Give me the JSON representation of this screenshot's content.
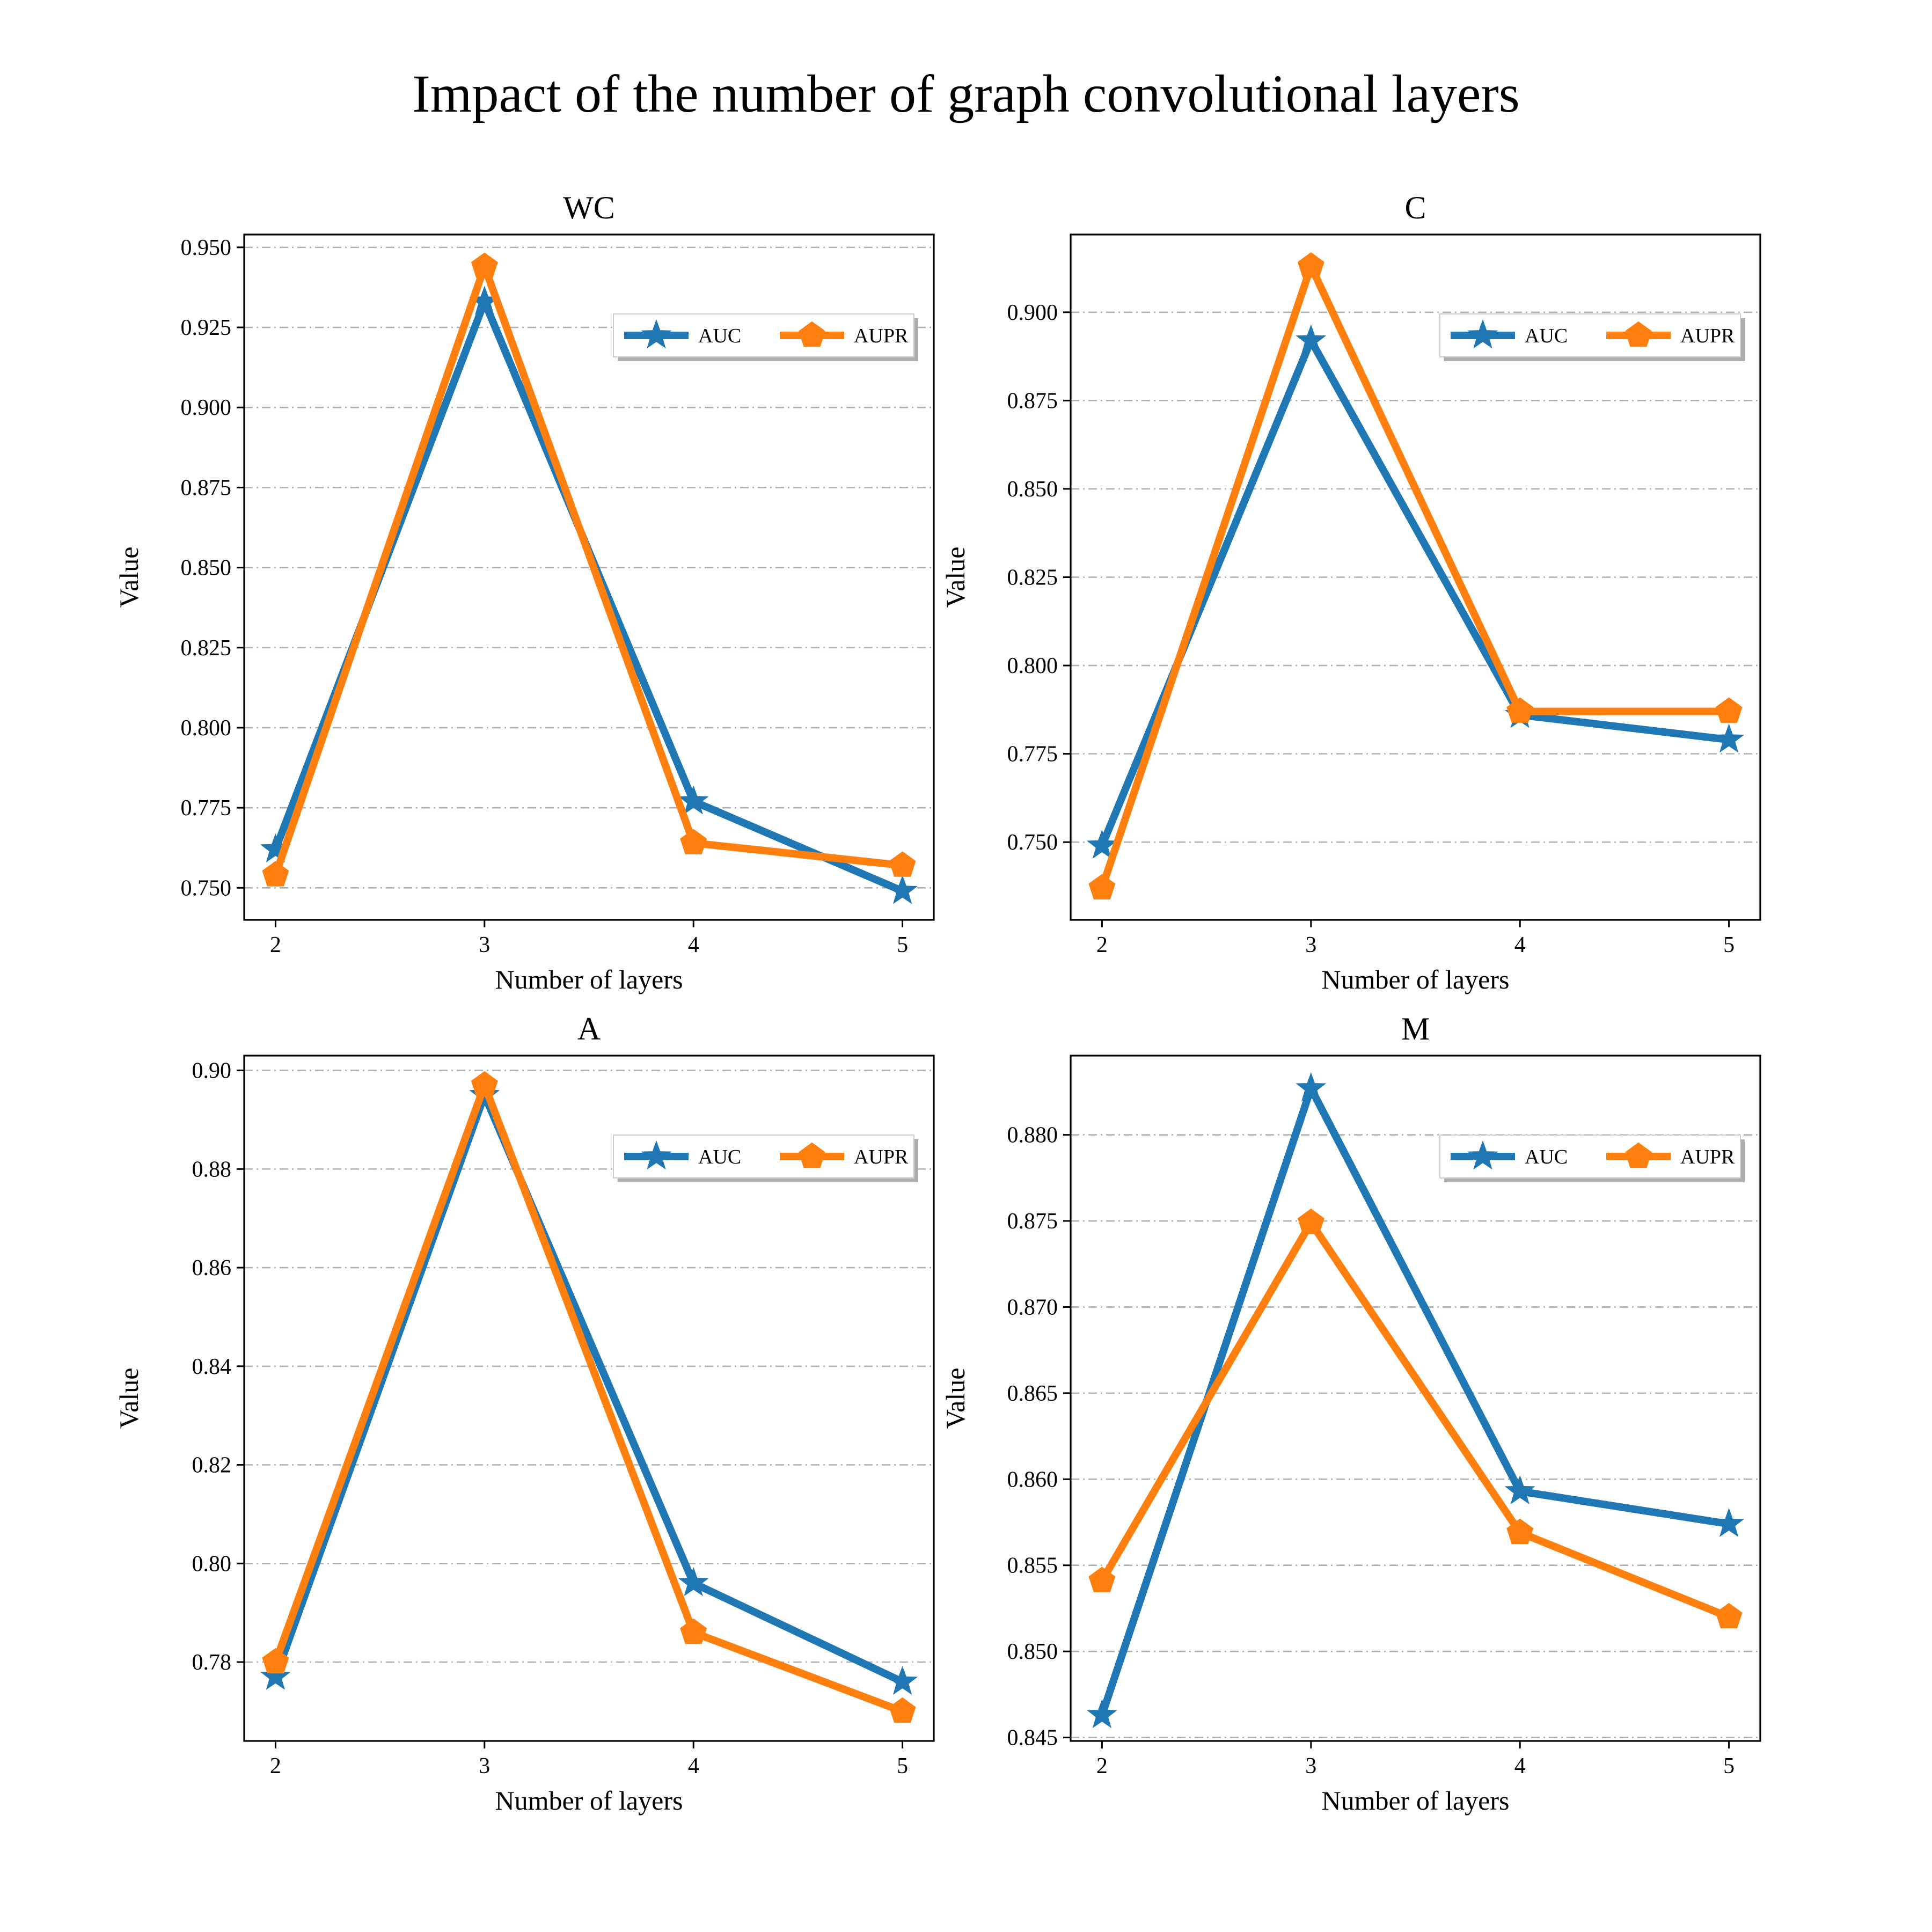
{
  "figure": {
    "title": "Impact of the number of graph convolutional layers"
  },
  "colors": {
    "auc": "#1f77b4",
    "aupr": "#ff7f0e",
    "grid": "#b0b0b0"
  },
  "chart_data": [
    {
      "type": "line",
      "title": "WC",
      "xlabel": "Number of layers",
      "ylabel": "Value",
      "x": [
        2,
        3,
        4,
        5
      ],
      "xticks": [
        "2",
        "3",
        "4",
        "5"
      ],
      "ylim": [
        0.74,
        0.954
      ],
      "yticks": [
        "0.750",
        "0.775",
        "0.800",
        "0.825",
        "0.850",
        "0.875",
        "0.900",
        "0.925",
        "0.950"
      ],
      "ytick_values": [
        0.75,
        0.775,
        0.8,
        0.825,
        0.85,
        0.875,
        0.9,
        0.925,
        0.95
      ],
      "grid": true,
      "legend": "upper right",
      "series": [
        {
          "name": "AUC",
          "marker": "star",
          "values": [
            0.762,
            0.933,
            0.777,
            0.749
          ]
        },
        {
          "name": "AUPR",
          "marker": "pentagon",
          "values": [
            0.754,
            0.944,
            0.764,
            0.757
          ]
        }
      ]
    },
    {
      "type": "line",
      "title": "C",
      "xlabel": "Number of layers",
      "ylabel": "Value",
      "x": [
        2,
        3,
        4,
        5
      ],
      "xticks": [
        "2",
        "3",
        "4",
        "5"
      ],
      "ylim": [
        0.728,
        0.922
      ],
      "yticks": [
        "0.750",
        "0.775",
        "0.800",
        "0.825",
        "0.850",
        "0.875",
        "0.900"
      ],
      "ytick_values": [
        0.75,
        0.775,
        0.8,
        0.825,
        0.85,
        0.875,
        0.9
      ],
      "grid": true,
      "legend": "upper right",
      "series": [
        {
          "name": "AUC",
          "marker": "star",
          "values": [
            0.749,
            0.892,
            0.786,
            0.779
          ]
        },
        {
          "name": "AUPR",
          "marker": "pentagon",
          "values": [
            0.737,
            0.913,
            0.787,
            0.787
          ]
        }
      ]
    },
    {
      "type": "line",
      "title": "A",
      "xlabel": "Number of layers",
      "ylabel": "Value",
      "x": [
        2,
        3,
        4,
        5
      ],
      "xticks": [
        "2",
        "3",
        "4",
        "5"
      ],
      "ylim": [
        0.764,
        0.903
      ],
      "yticks": [
        "0.78",
        "0.80",
        "0.82",
        "0.84",
        "0.86",
        "0.88",
        "0.90"
      ],
      "ytick_values": [
        0.78,
        0.8,
        0.82,
        0.84,
        0.86,
        0.88,
        0.9
      ],
      "grid": true,
      "legend": "upper right",
      "series": [
        {
          "name": "AUC",
          "marker": "star",
          "values": [
            0.777,
            0.895,
            0.796,
            0.776
          ]
        },
        {
          "name": "AUPR",
          "marker": "pentagon",
          "values": [
            0.78,
            0.897,
            0.786,
            0.77
          ]
        }
      ]
    },
    {
      "type": "line",
      "title": "M",
      "xlabel": "Number of layers",
      "ylabel": "Value",
      "x": [
        2,
        3,
        4,
        5
      ],
      "xticks": [
        "2",
        "3",
        "4",
        "5"
      ],
      "ylim": [
        0.8448,
        0.8846
      ],
      "yticks": [
        "0.845",
        "0.850",
        "0.855",
        "0.860",
        "0.865",
        "0.870",
        "0.875",
        "0.880"
      ],
      "ytick_values": [
        0.845,
        0.85,
        0.855,
        0.86,
        0.865,
        0.87,
        0.875,
        0.88
      ],
      "grid": true,
      "legend": "upper right",
      "series": [
        {
          "name": "AUC",
          "marker": "star",
          "values": [
            0.8463,
            0.8827,
            0.8593,
            0.8574
          ]
        },
        {
          "name": "AUPR",
          "marker": "pentagon",
          "values": [
            0.8541,
            0.8749,
            0.8569,
            0.852
          ]
        }
      ]
    }
  ]
}
